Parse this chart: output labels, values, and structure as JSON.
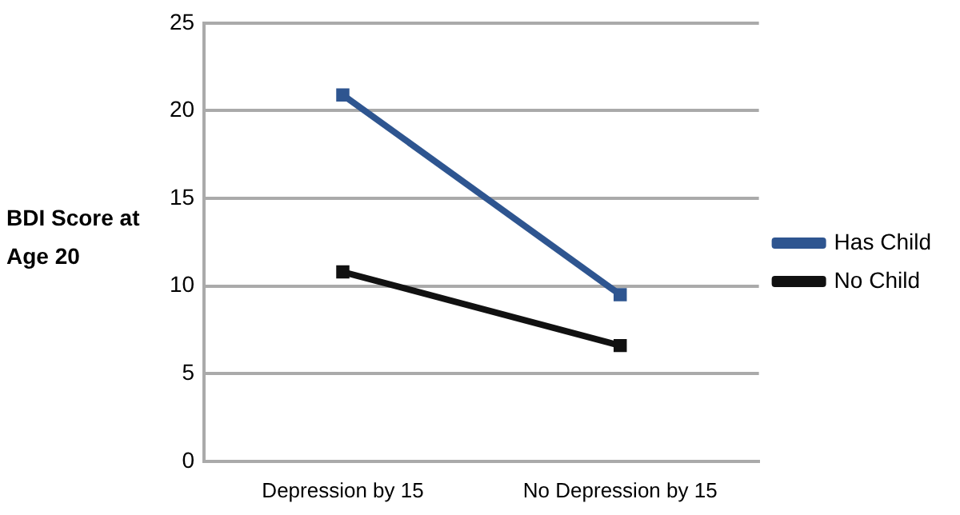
{
  "chart_data": {
    "type": "line",
    "ylabel": "BDI Score at Age 20",
    "categories": [
      "Depression by 15",
      "No Depression by 15"
    ],
    "series": [
      {
        "name": "Has Child",
        "color": "#2e5590",
        "values": [
          20.9,
          9.5
        ]
      },
      {
        "name": "No Child",
        "color": "#111111",
        "values": [
          10.8,
          6.6
        ]
      }
    ],
    "ylim": [
      0,
      25
    ],
    "yticks": [
      0,
      5,
      10,
      15,
      20,
      25
    ],
    "grid": "y",
    "legend": "right",
    "marker": "square"
  }
}
